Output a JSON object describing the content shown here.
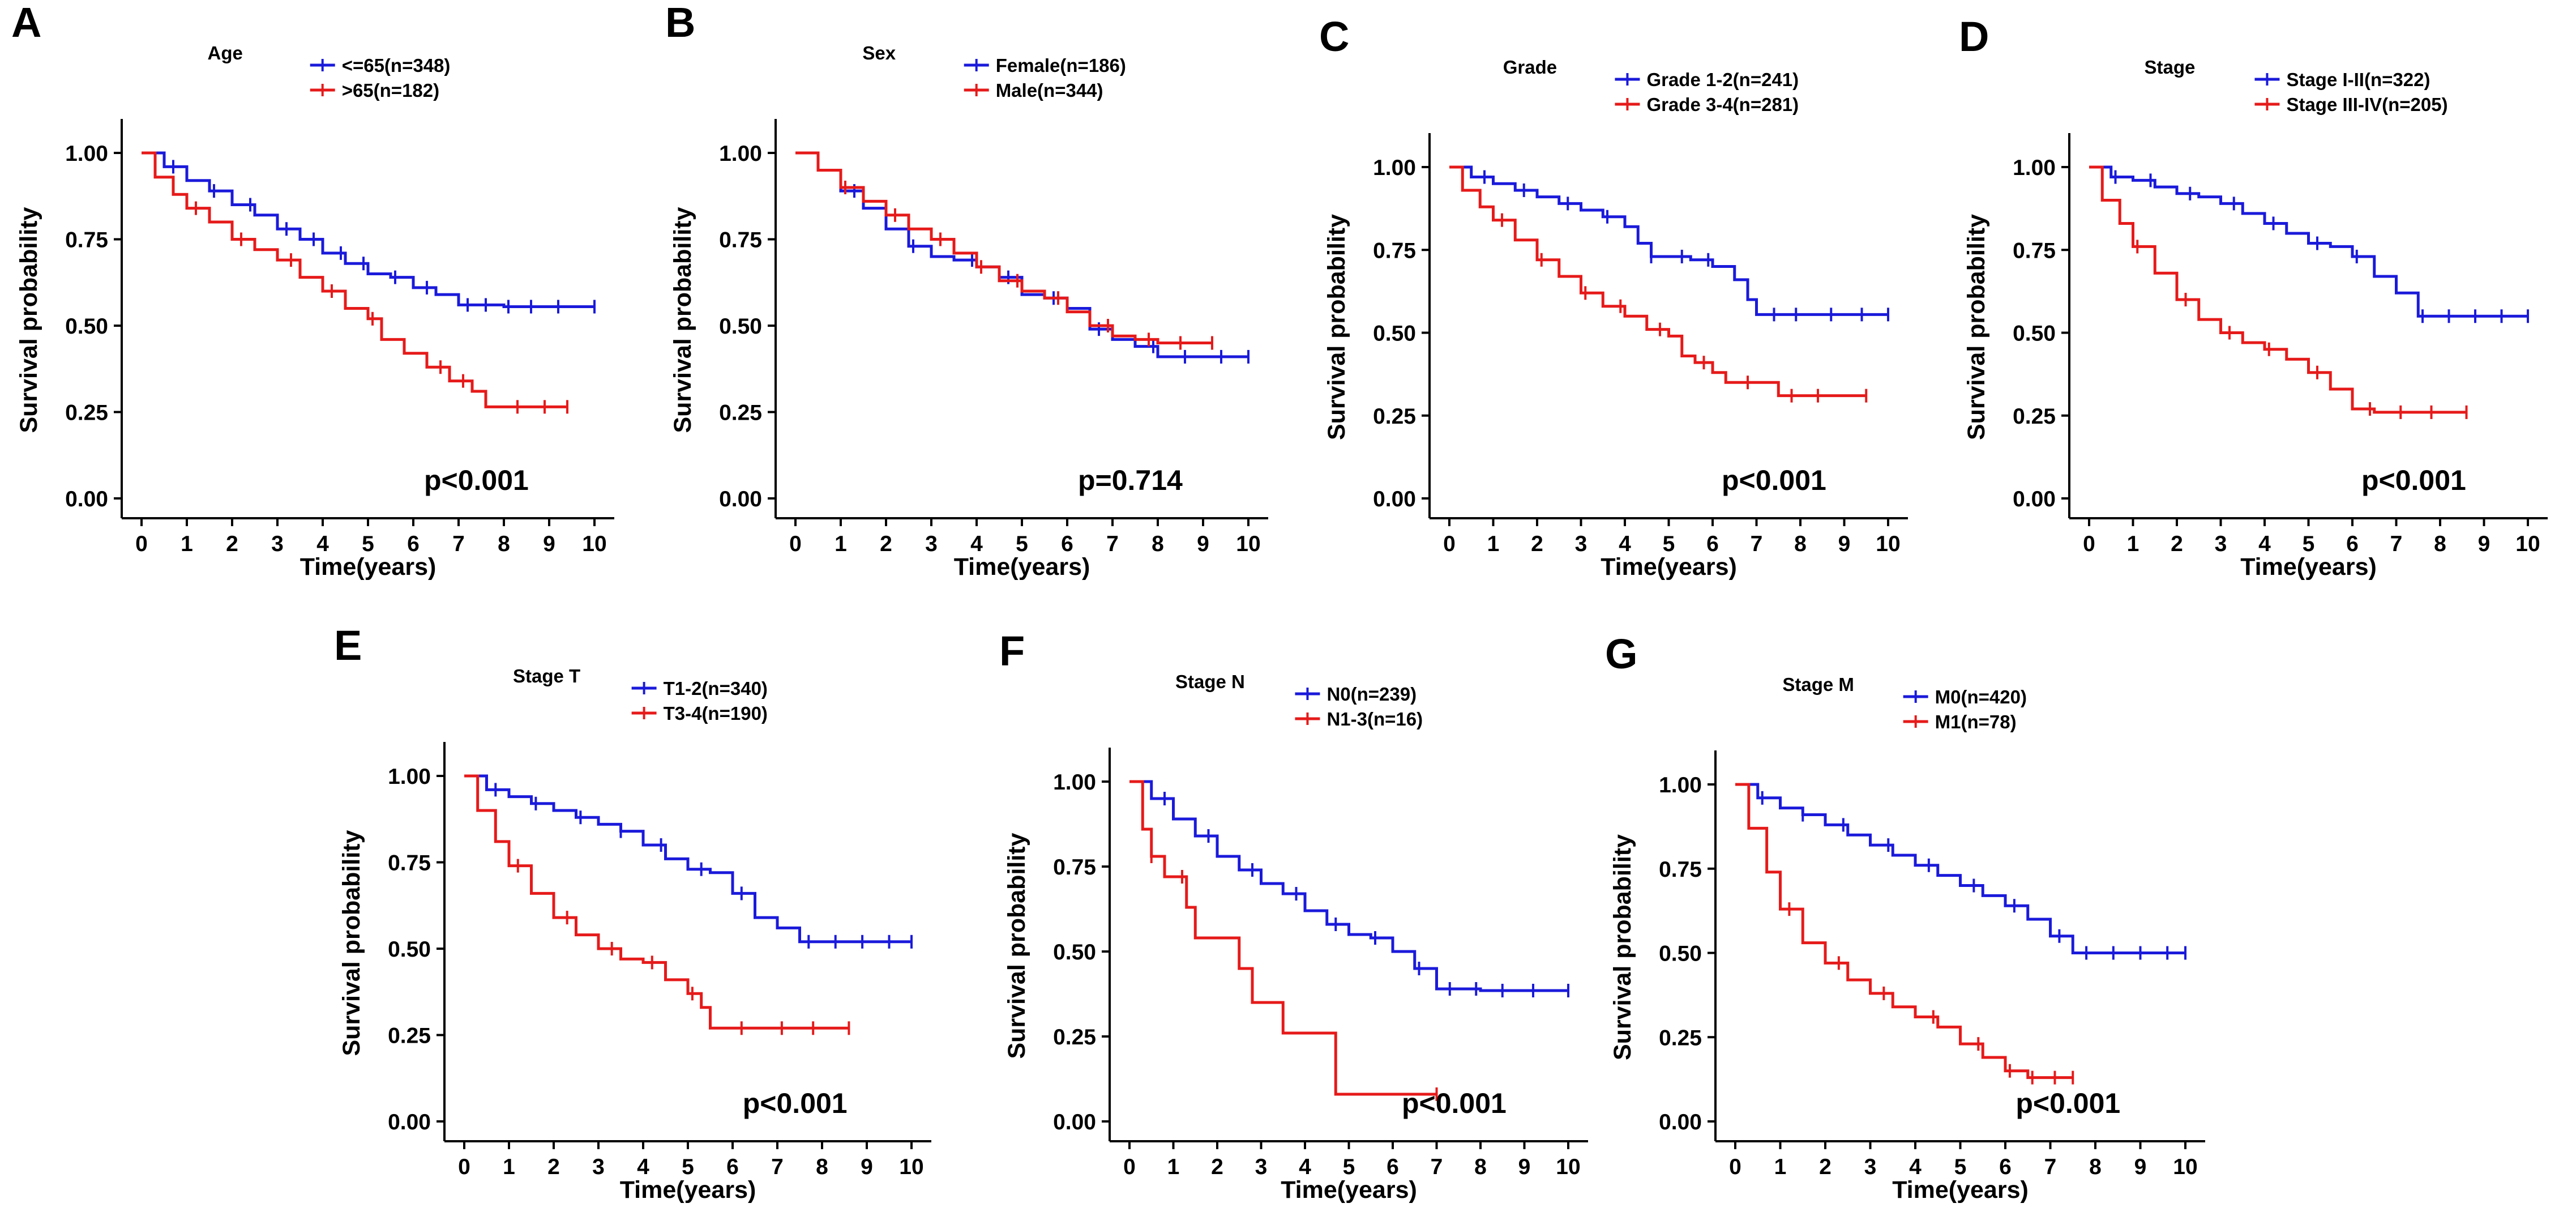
{
  "colors": {
    "series1": "#1a1adb",
    "series2": "#e61a1a",
    "axis": "#000000"
  },
  "chart_data": [
    {
      "type": "line",
      "subtype": "kaplan-meier",
      "panel": "A",
      "legend_title": "Age",
      "xlabel": "Time(years)",
      "ylabel": "Survival probability",
      "xlim": [
        0,
        10
      ],
      "ylim": [
        0,
        1
      ],
      "xticks": [
        "0",
        "1",
        "2",
        "3",
        "4",
        "5",
        "6",
        "7",
        "8",
        "9",
        "10"
      ],
      "yticks": [
        "0.00",
        "0.25",
        "0.50",
        "0.75",
        "1.00"
      ],
      "pvalue": "p<0.001",
      "series": [
        {
          "name": "<=65(n=348)",
          "color": "#1a1adb",
          "x": [
            0,
            0.5,
            1,
            1.5,
            2,
            2.5,
            3,
            3.5,
            4,
            4.5,
            5,
            5.5,
            6,
            6.5,
            7,
            8,
            9,
            10
          ],
          "y": [
            1.0,
            0.96,
            0.92,
            0.89,
            0.85,
            0.82,
            0.78,
            0.75,
            0.71,
            0.68,
            0.65,
            0.64,
            0.61,
            0.59,
            0.56,
            0.555,
            0.555,
            0.555
          ],
          "censor_x": [
            0.7,
            1.6,
            2.4,
            3.2,
            3.8,
            4.4,
            4.9,
            5.6,
            6.3,
            7.2,
            7.6,
            8.1,
            8.6,
            9.2,
            10
          ]
        },
        {
          "name": ">65(n=182)",
          "color": "#e61a1a",
          "x": [
            0,
            0.3,
            0.7,
            1,
            1.5,
            2,
            2.5,
            3,
            3.5,
            4,
            4.5,
            5,
            5.3,
            5.8,
            6.3,
            6.8,
            7.3,
            7.6,
            8,
            9,
            9.4
          ],
          "y": [
            1.0,
            0.93,
            0.88,
            0.84,
            0.8,
            0.75,
            0.72,
            0.69,
            0.64,
            0.6,
            0.55,
            0.52,
            0.46,
            0.42,
            0.38,
            0.34,
            0.31,
            0.265,
            0.265,
            0.265,
            0.265
          ],
          "censor_x": [
            1.2,
            2.2,
            3.3,
            4.2,
            5.1,
            6.6,
            7.1,
            8.3,
            8.9,
            9.4
          ]
        }
      ]
    },
    {
      "type": "line",
      "subtype": "kaplan-meier",
      "panel": "B",
      "legend_title": "Sex",
      "xlabel": "Time(years)",
      "ylabel": "Survival probability",
      "xlim": [
        0,
        10
      ],
      "ylim": [
        0,
        1
      ],
      "xticks": [
        "0",
        "1",
        "2",
        "3",
        "4",
        "5",
        "6",
        "7",
        "8",
        "9",
        "10"
      ],
      "yticks": [
        "0.00",
        "0.25",
        "0.50",
        "0.75",
        "1.00"
      ],
      "pvalue": "p=0.714",
      "series": [
        {
          "name": "Female(n=186)",
          "color": "#1a1adb",
          "x": [
            0,
            0.5,
            1,
            1.5,
            2,
            2.5,
            3,
            3.5,
            4,
            4.5,
            5,
            5.5,
            6,
            6.5,
            7,
            7.5,
            8,
            9,
            10
          ],
          "y": [
            1.0,
            0.95,
            0.89,
            0.84,
            0.78,
            0.73,
            0.7,
            0.69,
            0.67,
            0.64,
            0.59,
            0.58,
            0.55,
            0.49,
            0.46,
            0.44,
            0.41,
            0.41,
            0.41
          ],
          "censor_x": [
            1.3,
            2.6,
            3.9,
            4.7,
            5.7,
            6.7,
            7.9,
            8.6,
            9.4,
            10
          ]
        },
        {
          "name": "Male(n=344)",
          "color": "#e61a1a",
          "x": [
            0,
            0.5,
            1,
            1.5,
            2,
            2.5,
            3,
            3.5,
            4,
            4.5,
            5,
            5.5,
            6,
            6.5,
            7,
            7.5,
            8,
            9,
            9.2
          ],
          "y": [
            1.0,
            0.95,
            0.9,
            0.86,
            0.82,
            0.78,
            0.75,
            0.71,
            0.67,
            0.63,
            0.6,
            0.58,
            0.54,
            0.5,
            0.47,
            0.46,
            0.45,
            0.45,
            0.45
          ],
          "censor_x": [
            1.1,
            2.2,
            3.2,
            4.1,
            4.9,
            5.8,
            6.9,
            7.8,
            8.5,
            9.2
          ]
        }
      ]
    },
    {
      "type": "line",
      "subtype": "kaplan-meier",
      "panel": "C",
      "legend_title": "Grade",
      "xlabel": "Time(years)",
      "ylabel": "Survival probability",
      "xlim": [
        0,
        10
      ],
      "ylim": [
        0,
        1
      ],
      "xticks": [
        "0",
        "1",
        "2",
        "3",
        "4",
        "5",
        "6",
        "7",
        "8",
        "9",
        "10"
      ],
      "yticks": [
        "0.00",
        "0.25",
        "0.50",
        "0.75",
        "1.00"
      ],
      "pvalue": "p<0.001",
      "series": [
        {
          "name": "Grade 1-2(n=241)",
          "color": "#1a1adb",
          "x": [
            0,
            0.5,
            1,
            1.5,
            2,
            2.5,
            3,
            3.5,
            4,
            4.3,
            4.6,
            5,
            5.5,
            6,
            6.5,
            6.8,
            7,
            8,
            9,
            10
          ],
          "y": [
            1.0,
            0.97,
            0.95,
            0.93,
            0.91,
            0.89,
            0.87,
            0.85,
            0.82,
            0.77,
            0.73,
            0.73,
            0.72,
            0.7,
            0.66,
            0.6,
            0.555,
            0.555,
            0.555,
            0.555
          ],
          "censor_x": [
            0.8,
            1.7,
            2.7,
            3.6,
            4.6,
            5.3,
            5.9,
            7.4,
            7.9,
            8.7,
            9.4,
            10
          ]
        },
        {
          "name": "Grade 3-4(n=281)",
          "color": "#e61a1a",
          "x": [
            0,
            0.3,
            0.7,
            1,
            1.5,
            2,
            2.5,
            3,
            3.5,
            4,
            4.5,
            5,
            5.3,
            5.6,
            6,
            6.3,
            7,
            7.5,
            8,
            9,
            9.5
          ],
          "y": [
            1.0,
            0.93,
            0.88,
            0.84,
            0.78,
            0.72,
            0.67,
            0.62,
            0.58,
            0.55,
            0.51,
            0.49,
            0.43,
            0.41,
            0.38,
            0.35,
            0.35,
            0.31,
            0.31,
            0.31,
            0.31
          ],
          "censor_x": [
            1.2,
            2.1,
            3.1,
            3.9,
            4.8,
            5.8,
            6.8,
            7.8,
            8.4,
            9.5
          ]
        }
      ]
    },
    {
      "type": "line",
      "subtype": "kaplan-meier",
      "panel": "D",
      "legend_title": "Stage",
      "xlabel": "Time(years)",
      "ylabel": "Survival probability",
      "xlim": [
        0,
        10
      ],
      "ylim": [
        0,
        1
      ],
      "xticks": [
        "0",
        "1",
        "2",
        "3",
        "4",
        "5",
        "6",
        "7",
        "8",
        "9",
        "10"
      ],
      "yticks": [
        "0.00",
        "0.25",
        "0.50",
        "0.75",
        "1.00"
      ],
      "pvalue": "p<0.001",
      "series": [
        {
          "name": "Stage I-II(n=322)",
          "color": "#1a1adb",
          "x": [
            0,
            0.5,
            1,
            1.5,
            2,
            2.5,
            3,
            3.5,
            4,
            4.5,
            5,
            5.5,
            6,
            6.5,
            7,
            7.5,
            8,
            9,
            10
          ],
          "y": [
            1.0,
            0.97,
            0.96,
            0.94,
            0.92,
            0.91,
            0.89,
            0.86,
            0.83,
            0.8,
            0.77,
            0.76,
            0.73,
            0.67,
            0.62,
            0.55,
            0.55,
            0.55,
            0.55
          ],
          "censor_x": [
            0.6,
            1.4,
            2.3,
            3.3,
            4.2,
            5.2,
            6.1,
            7.6,
            8.2,
            8.8,
            9.4,
            10
          ]
        },
        {
          "name": "Stage III-IV(n=205)",
          "color": "#e61a1a",
          "x": [
            0,
            0.3,
            0.7,
            1,
            1.5,
            2,
            2.5,
            3,
            3.5,
            4,
            4.5,
            5,
            5.5,
            6,
            6.5,
            7,
            8,
            8.6
          ],
          "y": [
            1.0,
            0.9,
            0.83,
            0.76,
            0.68,
            0.6,
            0.54,
            0.5,
            0.47,
            0.45,
            0.42,
            0.38,
            0.33,
            0.27,
            0.26,
            0.26,
            0.26,
            0.26
          ],
          "censor_x": [
            1.1,
            2.2,
            3.2,
            4.1,
            5.2,
            6.4,
            7.1,
            7.8,
            8.6
          ]
        }
      ]
    },
    {
      "type": "line",
      "subtype": "kaplan-meier",
      "panel": "E",
      "legend_title": "Stage T",
      "xlabel": "Time(years)",
      "ylabel": "Survival probability",
      "xlim": [
        0,
        10
      ],
      "ylim": [
        0,
        1
      ],
      "xticks": [
        "0",
        "1",
        "2",
        "3",
        "4",
        "5",
        "6",
        "7",
        "8",
        "9",
        "10"
      ],
      "yticks": [
        "0.00",
        "0.25",
        "0.50",
        "0.75",
        "1.00"
      ],
      "pvalue": "p<0.001",
      "series": [
        {
          "name": "T1-2(n=340)",
          "color": "#1a1adb",
          "x": [
            0,
            0.5,
            1,
            1.5,
            2,
            2.5,
            3,
            3.5,
            4,
            4.5,
            5,
            5.5,
            6,
            6.5,
            7,
            7.5,
            8,
            9,
            10
          ],
          "y": [
            1.0,
            0.96,
            0.94,
            0.92,
            0.9,
            0.88,
            0.86,
            0.84,
            0.8,
            0.76,
            0.73,
            0.72,
            0.66,
            0.59,
            0.56,
            0.52,
            0.52,
            0.52,
            0.52
          ],
          "censor_x": [
            0.7,
            1.6,
            2.6,
            3.5,
            4.4,
            5.3,
            6.2,
            7.7,
            8.3,
            8.9,
            9.5,
            10
          ]
        },
        {
          "name": "T3-4(n=190)",
          "color": "#e61a1a",
          "x": [
            0,
            0.3,
            0.7,
            1,
            1.5,
            2,
            2.5,
            3,
            3.5,
            4,
            4.5,
            5,
            5.3,
            5.5,
            6,
            7,
            8,
            8.6
          ],
          "y": [
            1.0,
            0.9,
            0.81,
            0.74,
            0.66,
            0.59,
            0.54,
            0.5,
            0.47,
            0.46,
            0.41,
            0.37,
            0.33,
            0.27,
            0.27,
            0.27,
            0.27,
            0.27
          ],
          "censor_x": [
            1.2,
            2.3,
            3.3,
            4.2,
            5.1,
            6.2,
            7.1,
            7.8,
            8.6
          ]
        }
      ]
    },
    {
      "type": "line",
      "subtype": "kaplan-meier",
      "panel": "F",
      "legend_title": "Stage N",
      "xlabel": "Time(years)",
      "ylabel": "Survival probability",
      "xlim": [
        0,
        10
      ],
      "ylim": [
        0,
        1
      ],
      "xticks": [
        "0",
        "1",
        "2",
        "3",
        "4",
        "5",
        "6",
        "7",
        "8",
        "9",
        "10"
      ],
      "yticks": [
        "0.00",
        "0.25",
        "0.50",
        "0.75",
        "1.00"
      ],
      "pvalue": "p<0.001",
      "series": [
        {
          "name": "N0(n=239)",
          "color": "#1a1adb",
          "x": [
            0,
            0.5,
            1,
            1.5,
            2,
            2.5,
            3,
            3.5,
            4,
            4.5,
            5,
            5.5,
            6,
            6.5,
            7,
            8,
            9,
            10
          ],
          "y": [
            1.0,
            0.95,
            0.89,
            0.84,
            0.78,
            0.74,
            0.7,
            0.67,
            0.62,
            0.58,
            0.55,
            0.54,
            0.5,
            0.45,
            0.39,
            0.385,
            0.385,
            0.385
          ],
          "censor_x": [
            0.8,
            1.8,
            2.8,
            3.8,
            4.7,
            5.6,
            6.6,
            7.3,
            7.9,
            8.5,
            9.2,
            10
          ]
        },
        {
          "name": "N1-3(n=16)",
          "color": "#e61a1a",
          "x": [
            0,
            0.3,
            0.5,
            0.8,
            1.3,
            1.5,
            2.5,
            2.8,
            3.5,
            4.5,
            4.7,
            5,
            6,
            7
          ],
          "y": [
            1.0,
            0.86,
            0.78,
            0.72,
            0.63,
            0.54,
            0.45,
            0.35,
            0.26,
            0.26,
            0.08,
            0.08,
            0.08,
            0.08
          ],
          "censor_x": [
            0.5,
            1.2,
            7
          ]
        }
      ]
    },
    {
      "type": "line",
      "subtype": "kaplan-meier",
      "panel": "G",
      "legend_title": "Stage M",
      "xlabel": "Time(years)",
      "ylabel": "Survival probability",
      "xlim": [
        0,
        10
      ],
      "ylim": [
        0,
        1
      ],
      "xticks": [
        "0",
        "1",
        "2",
        "3",
        "4",
        "5",
        "6",
        "7",
        "8",
        "9",
        "10"
      ],
      "yticks": [
        "0.00",
        "0.25",
        "0.50",
        "0.75",
        "1.00"
      ],
      "pvalue": "p<0.001",
      "series": [
        {
          "name": "M0(n=420)",
          "color": "#1a1adb",
          "x": [
            0,
            0.5,
            1,
            1.5,
            2,
            2.5,
            3,
            3.5,
            4,
            4.5,
            5,
            5.5,
            6,
            6.5,
            7,
            7.5,
            8,
            9,
            10
          ],
          "y": [
            1.0,
            0.96,
            0.93,
            0.91,
            0.88,
            0.85,
            0.82,
            0.79,
            0.76,
            0.73,
            0.7,
            0.67,
            0.64,
            0.6,
            0.55,
            0.5,
            0.5,
            0.5,
            0.5
          ],
          "censor_x": [
            0.6,
            1.5,
            2.4,
            3.4,
            4.3,
            5.3,
            6.2,
            7.2,
            7.8,
            8.4,
            9,
            9.6,
            10
          ]
        },
        {
          "name": "M1(n=78)",
          "color": "#e61a1a",
          "x": [
            0,
            0.3,
            0.7,
            1,
            1.5,
            2,
            2.5,
            3,
            3.5,
            4,
            4.5,
            5,
            5.5,
            6,
            6.5,
            7,
            7.5
          ],
          "y": [
            1.0,
            0.87,
            0.74,
            0.63,
            0.53,
            0.47,
            0.42,
            0.38,
            0.34,
            0.31,
            0.28,
            0.23,
            0.19,
            0.15,
            0.13,
            0.13,
            0.13
          ],
          "censor_x": [
            1.2,
            2.3,
            3.3,
            4.4,
            5.4,
            6.1,
            6.6,
            7.1,
            7.5
          ]
        }
      ]
    }
  ]
}
